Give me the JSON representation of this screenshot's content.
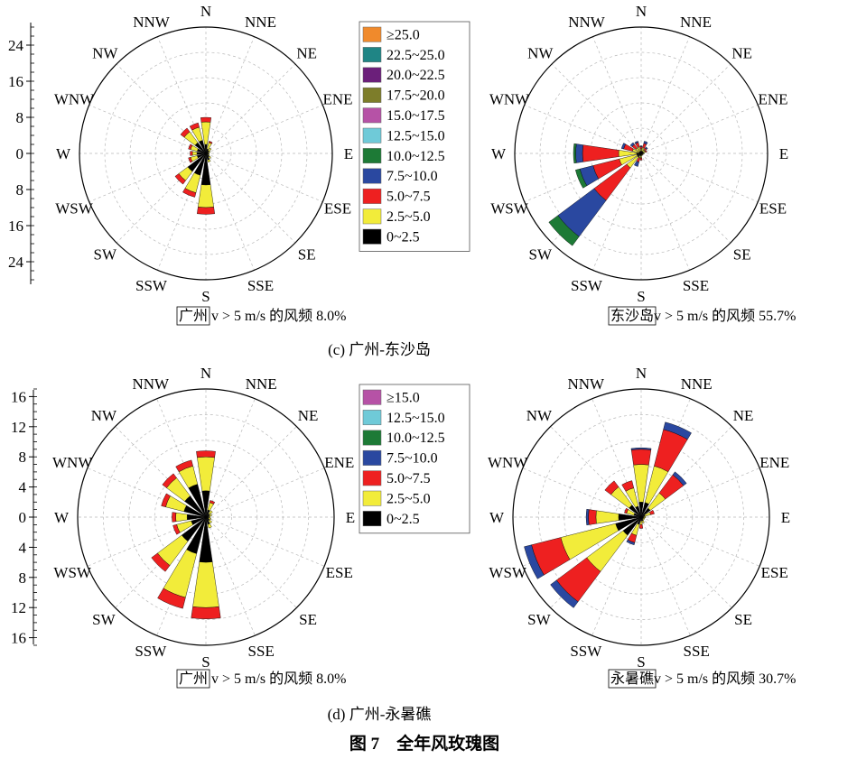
{
  "figure": {
    "panel_c_caption": "(c) 广州-东沙岛",
    "panel_d_caption": "(d) 广州-永暑礁",
    "title": "图 7　全年风玫瑰图"
  },
  "directions": [
    "N",
    "NNE",
    "NE",
    "ENE",
    "E",
    "ESE",
    "SE",
    "SSE",
    "S",
    "SSW",
    "SW",
    "WSW",
    "W",
    "WNW",
    "NW",
    "NNW"
  ],
  "legend_c": [
    {
      "label": "≥25.0",
      "color": "#f08a2c"
    },
    {
      "label": "22.5~25.0",
      "color": "#1f8585"
    },
    {
      "label": "20.0~22.5",
      "color": "#6b1f7a"
    },
    {
      "label": "17.5~20.0",
      "color": "#7d7d2a"
    },
    {
      "label": "15.0~17.5",
      "color": "#b652a6"
    },
    {
      "label": "12.5~15.0",
      "color": "#6fcad8"
    },
    {
      "label": "10.0~12.5",
      "color": "#1d7a36"
    },
    {
      "label": "7.5~10.0",
      "color": "#2a48a0"
    },
    {
      "label": "5.0~7.5",
      "color": "#ee2020"
    },
    {
      "label": "2.5~5.0",
      "color": "#f2ec3a"
    },
    {
      "label": "0~2.5",
      "color": "#000000"
    }
  ],
  "legend_d": [
    {
      "label": "≥15.0",
      "color": "#b652a6"
    },
    {
      "label": "12.5~15.0",
      "color": "#6fcad8"
    },
    {
      "label": "10.0~12.5",
      "color": "#1d7a36"
    },
    {
      "label": "7.5~10.0",
      "color": "#2a48a0"
    },
    {
      "label": "5.0~7.5",
      "color": "#ee2020"
    },
    {
      "label": "2.5~5.0",
      "color": "#f2ec3a"
    },
    {
      "label": "0~2.5",
      "color": "#000000"
    }
  ],
  "chart_data": [
    {
      "type": "wind-rose",
      "station": "广州",
      "annotation": {
        "station": "广州",
        "text": " v > 5 m/s 的风频 8.0%"
      },
      "rmax": 28,
      "axis_ticks": [
        "24",
        "16",
        "8",
        "0",
        "8",
        "16",
        "24"
      ],
      "tick_values": [
        24,
        16,
        8,
        0,
        8,
        16,
        24
      ],
      "bins": [
        "0~2.5",
        "2.5~5.0",
        "5.0~7.5",
        "7.5~10.0",
        "10.0~12.5"
      ],
      "values": {
        "N": [
          2.0,
          5.0,
          1.0,
          0,
          0
        ],
        "NNE": [
          1.0,
          1.5,
          0.3,
          0,
          0
        ],
        "NE": [
          0.8,
          0.7,
          0,
          0,
          0
        ],
        "ENE": [
          0.6,
          0.4,
          0,
          0,
          0
        ],
        "E": [
          0.5,
          0.2,
          0,
          0,
          0
        ],
        "ESE": [
          0.5,
          0.3,
          0,
          0,
          0
        ],
        "SE": [
          1.0,
          0.4,
          0,
          0,
          0
        ],
        "SSE": [
          1.5,
          0.5,
          0,
          0,
          0
        ],
        "S": [
          7.0,
          5.0,
          1.5,
          0,
          0
        ],
        "SSW": [
          5.0,
          4.0,
          1.0,
          0,
          0
        ],
        "SW": [
          5.0,
          2.5,
          1.0,
          0,
          0
        ],
        "WSW": [
          2.0,
          1.5,
          0.5,
          0,
          0
        ],
        "W": [
          2.0,
          1.0,
          0.5,
          0,
          0
        ],
        "WNW": [
          2.0,
          1.5,
          0.5,
          0,
          0
        ],
        "NW": [
          3.0,
          3.0,
          1.0,
          0,
          0
        ],
        "NNW": [
          3.0,
          3.0,
          1.0,
          0,
          0
        ]
      }
    },
    {
      "type": "wind-rose",
      "station": "东沙岛",
      "annotation": {
        "station": "东沙岛",
        "text": "v > 5 m/s 的风频 55.7%"
      },
      "rmax": 28,
      "bins": [
        "0~2.5",
        "2.5~5.0",
        "5.0~7.5",
        "7.5~10.0",
        "10.0~12.5"
      ],
      "values": {
        "N": [
          0.5,
          0.5,
          0.5,
          0.2,
          0
        ],
        "NNE": [
          0.5,
          0.8,
          1.0,
          0.5,
          0
        ],
        "NE": [
          0.5,
          0.5,
          0.5,
          0.3,
          0
        ],
        "ENE": [
          0.5,
          0.5,
          0.3,
          0,
          0
        ],
        "E": [
          0.4,
          0.3,
          0,
          0,
          0
        ],
        "ESE": [
          0.3,
          0.2,
          0,
          0,
          0
        ],
        "SE": [
          0.3,
          0.2,
          0,
          0,
          0
        ],
        "SSE": [
          0.3,
          0.2,
          0,
          0,
          0
        ],
        "S": [
          0.5,
          0.5,
          0.5,
          0,
          0
        ],
        "SSW": [
          0.5,
          0.5,
          1.0,
          1.0,
          0
        ],
        "SW": [
          1.0,
          3.0,
          9.0,
          10.0,
          2.5
        ],
        "WSW": [
          1.0,
          4.0,
          6.0,
          3.0,
          1.0
        ],
        "W": [
          1.0,
          4.0,
          8.0,
          1.5,
          0.5
        ],
        "WNW": [
          0.5,
          1.5,
          2.0,
          0.5,
          0
        ],
        "NW": [
          0.5,
          1.0,
          1.0,
          0.5,
          0
        ],
        "NNW": [
          0.5,
          1.0,
          1.0,
          0.3,
          0
        ]
      }
    },
    {
      "type": "wind-rose",
      "station": "广州",
      "annotation": {
        "station": "广州",
        "text": " v > 5 m/s 的风频 8.0%"
      },
      "rmax": 17,
      "axis_ticks": [
        "16",
        "12",
        "8",
        "4",
        "0",
        "4",
        "8",
        "12",
        "16"
      ],
      "tick_values": [
        16,
        12,
        8,
        4,
        0,
        4,
        8,
        12,
        16
      ],
      "bins": [
        "0~2.5",
        "2.5~5.0",
        "5.0~7.5",
        "7.5~10.0"
      ],
      "values": {
        "N": [
          3.5,
          4.5,
          0.8,
          0
        ],
        "NNE": [
          1.0,
          1.0,
          0.3,
          0
        ],
        "NE": [
          0.6,
          0.5,
          0,
          0
        ],
        "ENE": [
          0.5,
          0.3,
          0,
          0
        ],
        "E": [
          0.4,
          0.2,
          0,
          0
        ],
        "ESE": [
          0.4,
          0.3,
          0,
          0
        ],
        "SE": [
          0.6,
          0.4,
          0,
          0
        ],
        "SSE": [
          1.0,
          0.5,
          0,
          0
        ],
        "S": [
          6.0,
          6.0,
          1.5,
          0
        ],
        "SSW": [
          5.0,
          6.0,
          1.5,
          0
        ],
        "SW": [
          4.0,
          4.0,
          1.0,
          0
        ],
        "WSW": [
          2.0,
          2.0,
          0.5,
          0
        ],
        "W": [
          2.5,
          1.5,
          0.5,
          0
        ],
        "WNW": [
          3.0,
          2.5,
          0.6,
          0
        ],
        "NW": [
          3.5,
          3.0,
          0.7,
          0
        ],
        "NNW": [
          4.5,
          2.5,
          0.8,
          0
        ]
      }
    },
    {
      "type": "wind-rose",
      "station": "永暑礁",
      "annotation": {
        "station": "永暑礁",
        "text": "v > 5 m/s 的风频 30.7%"
      },
      "rmax": 17,
      "bins": [
        "0~2.5",
        "2.5~5.0",
        "5.0~7.5",
        "7.5~10.0"
      ],
      "values": {
        "N": [
          2.0,
          5.0,
          2.0,
          0.2
        ],
        "NNE": [
          2.0,
          5.0,
          5.0,
          1.0
        ],
        "NE": [
          1.5,
          2.5,
          3.0,
          0.5
        ],
        "ENE": [
          0.5,
          0.8,
          0.5,
          0
        ],
        "E": [
          0.3,
          0.3,
          0,
          0
        ],
        "ESE": [
          0.3,
          0.2,
          0,
          0
        ],
        "SE": [
          0.3,
          0.2,
          0,
          0
        ],
        "SSE": [
          0.5,
          0.3,
          0,
          0
        ],
        "S": [
          0.5,
          0.5,
          0.5,
          0
        ],
        "SSW": [
          1.0,
          1.5,
          1.0,
          0.3
        ],
        "SW": [
          3.0,
          6.0,
          5.0,
          1.0
        ],
        "WSW": [
          3.5,
          7.5,
          4.0,
          1.0
        ],
        "W": [
          3.0,
          3.0,
          1.0,
          0.3
        ],
        "WNW": [
          1.0,
          1.0,
          0.3,
          0
        ],
        "NW": [
          2.0,
          3.0,
          1.0,
          0
        ],
        "NNW": [
          1.5,
          2.5,
          1.0,
          0
        ]
      }
    }
  ]
}
